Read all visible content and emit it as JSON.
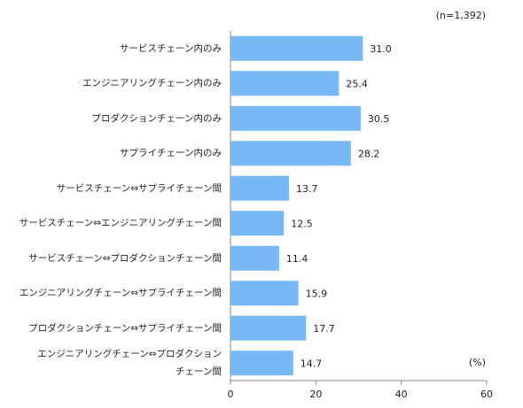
{
  "chart_data": {
    "type": "bar",
    "orientation": "horizontal",
    "annotations": [
      "(n=1,392)",
      "(%)"
    ],
    "categories": [
      "サービスチェーン内のみ",
      "エンジニアリングチェーン内のみ",
      "プロダクションチェーン内のみ",
      "サプライチェーン内のみ",
      "サービスチェーン⇔サプライチェーン間",
      "サービスチェーン⇔エンジニアリングチェーン間",
      "サービスチェーン⇔プロダクションチェーン間",
      "エンジニアリングチェーン⇔サプライチェーン間",
      "プロダクションチェーン⇔サプライチェーン間",
      "エンジニアリングチェーン⇔プロダクション\nチェーン間"
    ],
    "values": [
      31.0,
      25.4,
      30.5,
      28.2,
      13.7,
      12.5,
      11.4,
      15.9,
      17.7,
      14.7
    ],
    "value_labels": [
      "31.0",
      "25.4",
      "30.5",
      "28.2",
      "13.7",
      "12.5",
      "11.4",
      "15.9",
      "17.7",
      "14.7"
    ],
    "color": "#78b8f5",
    "xlim": [
      0,
      60
    ],
    "xticks": [
      0,
      20,
      40,
      60
    ],
    "grid": false
  }
}
